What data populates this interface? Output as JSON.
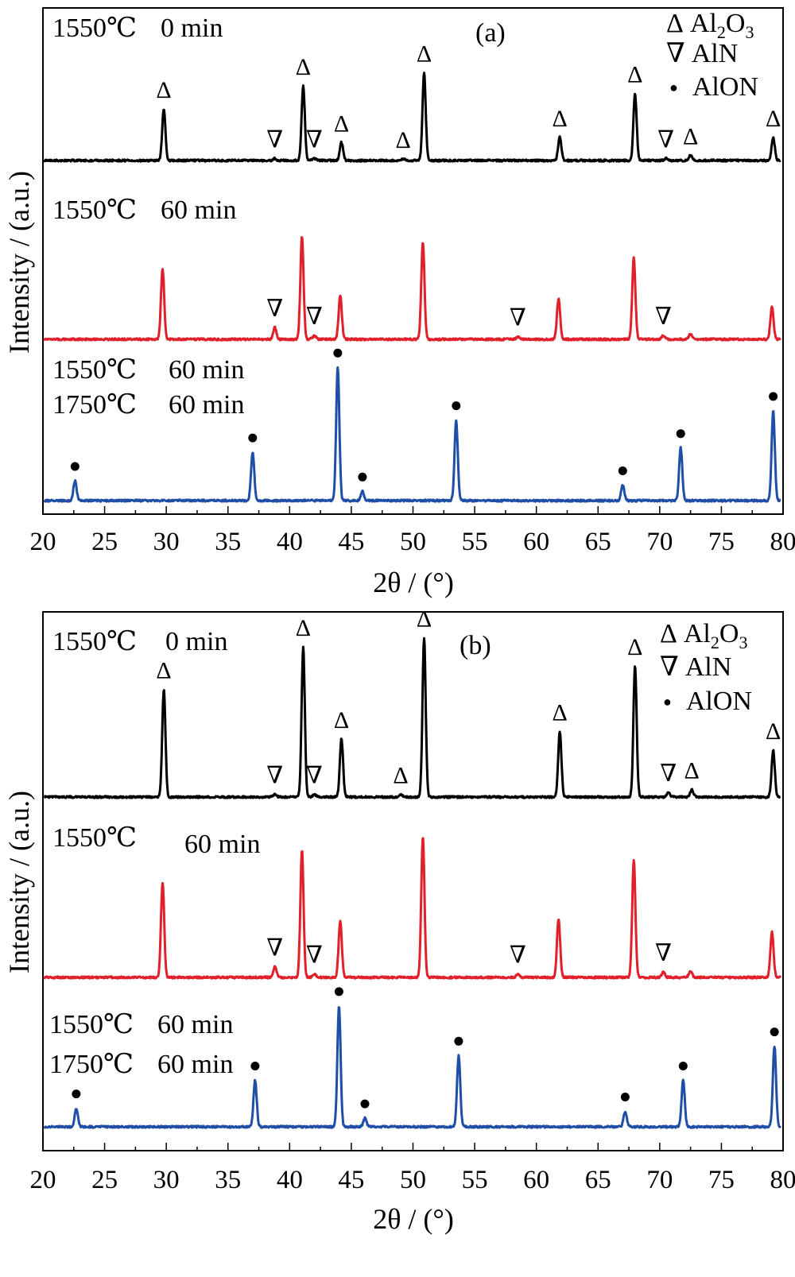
{
  "colors": {
    "series_0": "#000000",
    "series_1": "#e0202a",
    "series_2": "#1f4ea6"
  },
  "chart_data": [
    {
      "type": "line",
      "panel_label": "(a)",
      "xlabel": "2θ / (°)",
      "ylabel": "Intensity / (a.u.)",
      "xlim": [
        20,
        80
      ],
      "xticks": [
        "20",
        "25",
        "30",
        "35",
        "40",
        "45",
        "50",
        "55",
        "60",
        "65",
        "70",
        "75",
        "80"
      ],
      "legend": [
        {
          "symbol": "Δ",
          "label": "Al",
          "sub1": "2",
          "mid": "O",
          "sub2": "3"
        },
        {
          "symbol": "∇",
          "label": "AlN"
        },
        {
          "symbol": "●",
          "label": "AlON"
        }
      ],
      "series": [
        {
          "name": "1550℃ 0 min",
          "labels": [
            "1550℃",
            "0 min"
          ],
          "color": "#000000",
          "peaks": [
            [
              29.8,
              1.0
            ],
            [
              38.8,
              0.04
            ],
            [
              41.1,
              1.45
            ],
            [
              42.0,
              0.04
            ],
            [
              44.2,
              0.35
            ],
            [
              49.2,
              0.03
            ],
            [
              50.9,
              1.7
            ],
            [
              61.9,
              0.45
            ],
            [
              68.0,
              1.3
            ],
            [
              70.5,
              0.04
            ],
            [
              72.5,
              0.1
            ],
            [
              79.2,
              0.45
            ]
          ],
          "markers": [
            [
              "Δ",
              29.8
            ],
            [
              "∇",
              38.8
            ],
            [
              "Δ",
              41.1
            ],
            [
              "∇",
              42.0
            ],
            [
              "Δ",
              44.2
            ],
            [
              "Δ",
              49.2
            ],
            [
              "Δ",
              50.9
            ],
            [
              "Δ",
              61.9
            ],
            [
              "Δ",
              68.0
            ],
            [
              "∇",
              70.5
            ],
            [
              "Δ",
              72.5
            ],
            [
              "Δ",
              79.2
            ]
          ]
        },
        {
          "name": "1550℃ 60 min",
          "labels": [
            "1550℃",
            "60 min"
          ],
          "color": "#e0202a",
          "peaks": [
            [
              29.7,
              1.3
            ],
            [
              38.8,
              0.22
            ],
            [
              41.0,
              1.9
            ],
            [
              42.0,
              0.07
            ],
            [
              44.1,
              0.8
            ],
            [
              50.8,
              1.8
            ],
            [
              58.5,
              0.05
            ],
            [
              61.8,
              0.75
            ],
            [
              67.9,
              1.5
            ],
            [
              70.3,
              0.07
            ],
            [
              72.5,
              0.1
            ],
            [
              79.1,
              0.6
            ]
          ],
          "markers": [
            [
              "∇",
              38.8
            ],
            [
              "∇",
              42.0
            ],
            [
              "∇",
              58.5
            ],
            [
              "∇",
              70.3
            ]
          ]
        },
        {
          "name": "1550℃ 60 min 1750℃ 60 min",
          "labels": [
            "1550℃",
            "60 min",
            "1750℃",
            "60 min"
          ],
          "color": "#1f4ea6",
          "peaks": [
            [
              22.6,
              0.32
            ],
            [
              37.0,
              0.78
            ],
            [
              43.9,
              2.15
            ],
            [
              45.9,
              0.15
            ],
            [
              53.5,
              1.3
            ],
            [
              67.0,
              0.25
            ],
            [
              71.7,
              0.85
            ],
            [
              79.2,
              1.45
            ]
          ],
          "markers": [
            [
              "●",
              22.6
            ],
            [
              "●",
              37.0
            ],
            [
              "●",
              43.9
            ],
            [
              "●",
              45.9
            ],
            [
              "●",
              53.5
            ],
            [
              "●",
              67.0
            ],
            [
              "●",
              71.7
            ],
            [
              "●",
              79.2
            ]
          ]
        }
      ]
    },
    {
      "type": "line",
      "panel_label": "(b)",
      "xlabel": "2θ / (°)",
      "ylabel": "Intensity / (a.u.)",
      "xlim": [
        20,
        80
      ],
      "xticks": [
        "20",
        "25",
        "30",
        "35",
        "40",
        "45",
        "50",
        "55",
        "60",
        "65",
        "70",
        "75",
        "80"
      ],
      "legend": [
        {
          "symbol": "Δ",
          "label": "Al",
          "sub1": "2",
          "mid": "O",
          "sub2": "3"
        },
        {
          "symbol": "∇",
          "label": "AlN"
        },
        {
          "symbol": "●",
          "label": "AlON"
        }
      ],
      "series": [
        {
          "name": "1550℃ 0 min",
          "labels": [
            "1550℃",
            "0 min"
          ],
          "color": "#000000",
          "peaks": [
            [
              29.8,
              1.15
            ],
            [
              38.8,
              0.03
            ],
            [
              41.1,
              1.6
            ],
            [
              42.0,
              0.03
            ],
            [
              44.2,
              0.62
            ],
            [
              49.0,
              0.03
            ],
            [
              50.9,
              1.7
            ],
            [
              61.9,
              0.7
            ],
            [
              68.0,
              1.4
            ],
            [
              70.7,
              0.05
            ],
            [
              72.6,
              0.08
            ],
            [
              79.2,
              0.5
            ]
          ],
          "markers": [
            [
              "Δ",
              29.8
            ],
            [
              "∇",
              38.8
            ],
            [
              "Δ",
              41.1
            ],
            [
              "∇",
              42.0
            ],
            [
              "Δ",
              44.2
            ],
            [
              "Δ",
              49.0
            ],
            [
              "Δ",
              50.9
            ],
            [
              "Δ",
              61.9
            ],
            [
              "Δ",
              68.0
            ],
            [
              "∇",
              70.7
            ],
            [
              "Δ",
              72.6
            ],
            [
              "Δ",
              79.2
            ]
          ]
        },
        {
          "name": "1550℃ 60 min",
          "labels": [
            "1550℃",
            "60 min"
          ],
          "color": "#e0202a",
          "peaks": [
            [
              29.7,
              1.05
            ],
            [
              38.8,
              0.12
            ],
            [
              41.0,
              1.4
            ],
            [
              42.0,
              0.04
            ],
            [
              44.1,
              0.62
            ],
            [
              50.8,
              1.55
            ],
            [
              58.5,
              0.04
            ],
            [
              61.8,
              0.65
            ],
            [
              67.9,
              1.3
            ],
            [
              70.3,
              0.06
            ],
            [
              72.5,
              0.07
            ],
            [
              79.1,
              0.5
            ]
          ],
          "markers": [
            [
              "∇",
              38.8
            ],
            [
              "∇",
              42.0
            ],
            [
              "∇",
              58.5
            ],
            [
              "∇",
              70.3
            ]
          ]
        },
        {
          "name": "1550℃ 60 min 1750℃ 60 min",
          "labels": [
            "1550℃",
            "60 min",
            "1750℃",
            "60 min"
          ],
          "color": "#1f4ea6",
          "peaks": [
            [
              22.7,
              0.3
            ],
            [
              37.2,
              0.75
            ],
            [
              44.0,
              1.95
            ],
            [
              46.1,
              0.14
            ],
            [
              53.7,
              1.15
            ],
            [
              67.2,
              0.25
            ],
            [
              71.9,
              0.75
            ],
            [
              79.3,
              1.3
            ]
          ],
          "markers": [
            [
              "●",
              22.7
            ],
            [
              "●",
              37.2
            ],
            [
              "●",
              44.0
            ],
            [
              "●",
              46.1
            ],
            [
              "●",
              53.7
            ],
            [
              "●",
              67.2
            ],
            [
              "●",
              71.9
            ],
            [
              "●",
              79.3
            ]
          ]
        }
      ]
    }
  ]
}
